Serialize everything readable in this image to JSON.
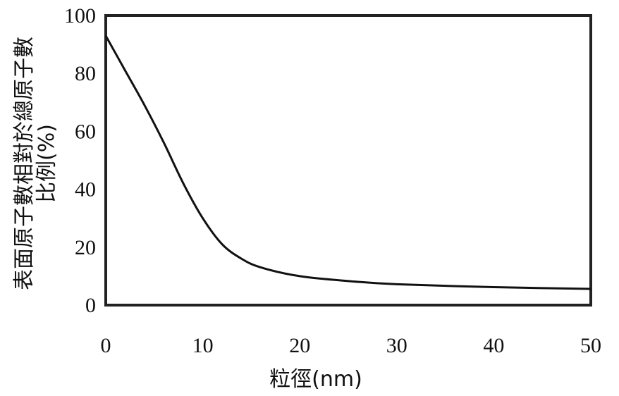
{
  "chart_data": {
    "type": "line",
    "title": "",
    "xlabel": "粒徑(nm)",
    "ylabel_lines": [
      "表面原子數相對於總原子數",
      "比例(%)"
    ],
    "xlim": [
      0,
      50
    ],
    "ylim": [
      0,
      100
    ],
    "xticks": [
      0,
      10,
      20,
      30,
      40,
      50
    ],
    "yticks": [
      0,
      20,
      40,
      60,
      80,
      100
    ],
    "grid": false,
    "line_color": "#111111",
    "series": [
      {
        "x": [
          0,
          2,
          4,
          6,
          8,
          10,
          12,
          14,
          16,
          20,
          25,
          30,
          40,
          50
        ],
        "y": [
          93,
          81,
          69,
          56,
          42,
          30,
          21,
          16,
          13,
          10,
          8.3,
          7.2,
          6.2,
          5.6
        ]
      }
    ]
  }
}
